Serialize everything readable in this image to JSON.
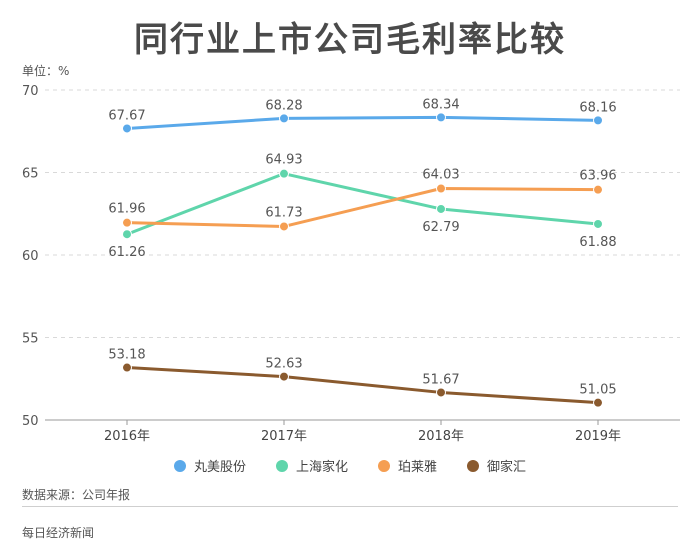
{
  "title": "同行业上市公司毛利率比较",
  "unit_label": "单位：%",
  "source": "数据来源：公司年报",
  "footer": "每日经济新闻",
  "chart_data": {
    "type": "line",
    "categories": [
      "2016年",
      "2017年",
      "2018年",
      "2019年"
    ],
    "ylim": [
      50,
      70
    ],
    "yticks": [
      50,
      55,
      60,
      65,
      70
    ],
    "grid": true,
    "legend_position": "bottom",
    "series": [
      {
        "name": "丸美股份",
        "color": "#5aa9ea",
        "values": [
          67.67,
          68.28,
          68.34,
          68.16
        ],
        "labels": [
          "67.67",
          "68.28",
          "68.34",
          "68.16"
        ]
      },
      {
        "name": "上海家化",
        "color": "#5fd5ab",
        "values": [
          61.26,
          64.93,
          62.79,
          61.88
        ],
        "labels": [
          "61.26",
          "64.93",
          "62.79",
          "61.88"
        ]
      },
      {
        "name": "珀莱雅",
        "color": "#f59e52",
        "values": [
          61.96,
          61.73,
          64.03,
          63.96
        ],
        "labels": [
          "61.96",
          "61.73",
          "64.03",
          "63.96"
        ]
      },
      {
        "name": "御家汇",
        "color": "#8a5a2e",
        "values": [
          53.18,
          52.63,
          51.67,
          51.05
        ],
        "labels": [
          "53.18",
          "52.63",
          "51.67",
          "51.05"
        ]
      }
    ]
  }
}
